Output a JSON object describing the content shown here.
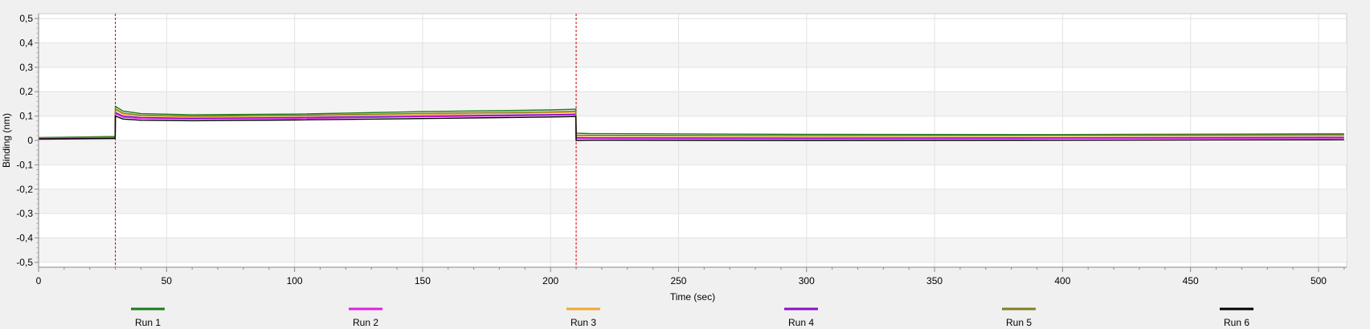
{
  "chart_data": {
    "type": "line",
    "xlabel": "Time (sec)",
    "ylabel": "Binding (nm)",
    "xlim": [
      0,
      511
    ],
    "ylim": [
      -0.52,
      0.52
    ],
    "x_ticks": [
      0,
      50,
      100,
      150,
      200,
      250,
      300,
      350,
      400,
      450,
      500
    ],
    "y_ticks": [
      0.5,
      0.4,
      0.3,
      0.2,
      0.1,
      0,
      -0.1,
      -0.2,
      -0.3,
      -0.4,
      -0.5
    ],
    "y_tick_labels": [
      "0,5",
      "0,4",
      "0,3",
      "0,2",
      "0,1",
      "0",
      "-0,1",
      "-0,2",
      "-0,3",
      "-0,4",
      "-0,5"
    ],
    "step_markers": [
      30,
      210
    ],
    "step_marker_color": "#cc0000",
    "grid": true,
    "legend_position": "bottom",
    "series": [
      {
        "name": "Run 1",
        "color": "#1a7a1a",
        "x": [
          0,
          29.9,
          30,
          33,
          40,
          60,
          100,
          150,
          200,
          209.9,
          210,
          215,
          300,
          400,
          510
        ],
        "y": [
          0.012,
          0.016,
          0.14,
          0.12,
          0.11,
          0.105,
          0.108,
          0.118,
          0.125,
          0.128,
          0.03,
          0.028,
          0.025,
          0.024,
          0.027
        ]
      },
      {
        "name": "Run 2",
        "color": "#e020e0",
        "x": [
          0,
          29.9,
          30,
          33,
          40,
          60,
          100,
          150,
          200,
          209.9,
          210,
          215,
          300,
          400,
          510
        ],
        "y": [
          0.005,
          0.008,
          0.11,
          0.095,
          0.09,
          0.088,
          0.09,
          0.097,
          0.103,
          0.105,
          0.008,
          0.008,
          0.007,
          0.008,
          0.01
        ]
      },
      {
        "name": "Run 3",
        "color": "#f0a830",
        "x": [
          0,
          29.9,
          30,
          33,
          40,
          60,
          100,
          150,
          200,
          209.9,
          210,
          215,
          300,
          400,
          510
        ],
        "y": [
          0.01,
          0.012,
          0.125,
          0.108,
          0.1,
          0.097,
          0.1,
          0.107,
          0.113,
          0.116,
          0.018,
          0.018,
          0.017,
          0.018,
          0.02
        ]
      },
      {
        "name": "Run 4",
        "color": "#8a10c8",
        "x": [
          0,
          29.9,
          30,
          33,
          40,
          60,
          100,
          150,
          200,
          209.9,
          210,
          215,
          300,
          400,
          510
        ],
        "y": [
          0.008,
          0.01,
          0.115,
          0.1,
          0.094,
          0.091,
          0.094,
          0.1,
          0.106,
          0.108,
          0.012,
          0.011,
          0.01,
          0.011,
          0.013
        ]
      },
      {
        "name": "Run 5",
        "color": "#808020",
        "x": [
          0,
          29.9,
          30,
          33,
          40,
          60,
          100,
          150,
          200,
          209.9,
          210,
          215,
          300,
          400,
          510
        ],
        "y": [
          0.011,
          0.013,
          0.13,
          0.112,
          0.104,
          0.1,
          0.103,
          0.111,
          0.117,
          0.12,
          0.022,
          0.021,
          0.02,
          0.021,
          0.023
        ]
      },
      {
        "name": "Run 6",
        "color": "#000000",
        "x": [
          0,
          29.9,
          30,
          33,
          40,
          60,
          100,
          150,
          200,
          209.9,
          210,
          215,
          300,
          400,
          510
        ],
        "y": [
          0.006,
          0.008,
          0.1,
          0.088,
          0.083,
          0.081,
          0.084,
          0.09,
          0.096,
          0.098,
          0.0,
          0.001,
          0.0,
          0.001,
          0.003
        ]
      }
    ]
  }
}
